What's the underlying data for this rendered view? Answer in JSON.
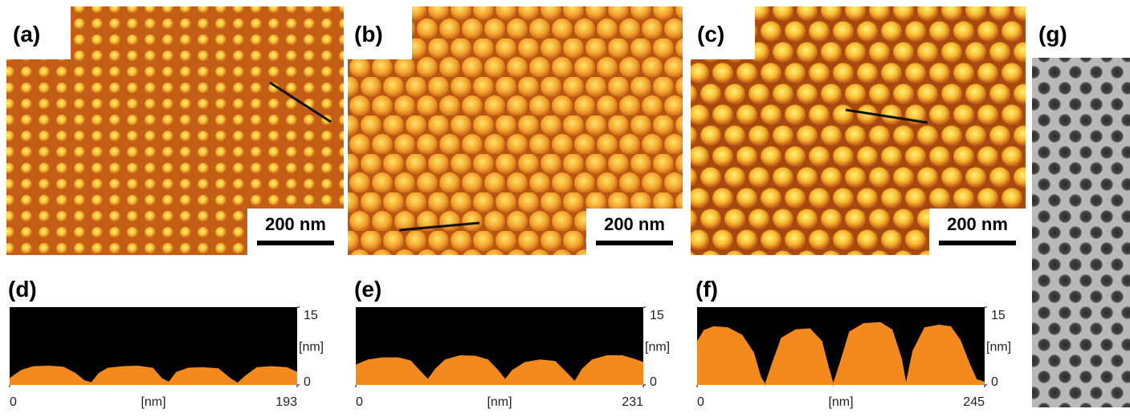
{
  "panels": [
    {
      "label": "(a)",
      "scale_bar": "200 nm"
    },
    {
      "label": "(b)",
      "scale_bar": "200 nm"
    },
    {
      "label": "(c)",
      "scale_bar": "200 nm"
    }
  ],
  "profiles": [
    {
      "label": "(d)",
      "xlim": [
        0,
        193
      ],
      "xticks": [
        0,
        193
      ],
      "ylim": [
        0,
        15
      ],
      "yticks": [
        0,
        15
      ],
      "x_label": "[nm]",
      "y_label": "[nm]",
      "x": [
        0,
        8,
        16,
        26,
        36,
        44,
        50,
        55,
        60,
        66,
        76,
        86,
        96,
        102,
        107,
        112,
        120,
        130,
        140,
        148,
        153,
        158,
        166,
        176,
        186,
        193
      ],
      "values": [
        1.2,
        2.8,
        3.5,
        3.6,
        3.4,
        2.2,
        0.8,
        0.4,
        2.2,
        3.2,
        3.5,
        3.6,
        3.2,
        1.2,
        0.5,
        2.4,
        3.2,
        3.3,
        3.1,
        1.2,
        0.3,
        1.6,
        3.3,
        3.5,
        3.3,
        2.4
      ]
    },
    {
      "label": "(e)",
      "xlim": [
        0,
        231
      ],
      "xticks": [
        0,
        231
      ],
      "ylim": [
        0,
        15
      ],
      "yticks": [
        0,
        15
      ],
      "x_label": "[nm]",
      "y_label": "[nm]",
      "x": [
        0,
        10,
        22,
        34,
        44,
        52,
        58,
        64,
        72,
        84,
        96,
        106,
        114,
        120,
        126,
        136,
        148,
        160,
        168,
        176,
        182,
        190,
        202,
        214,
        224,
        231
      ],
      "values": [
        3.8,
        4.8,
        5.2,
        5.2,
        4.6,
        2.5,
        1.0,
        3.0,
        4.8,
        5.6,
        5.5,
        4.8,
        2.8,
        1.0,
        2.8,
        4.3,
        4.8,
        4.5,
        2.6,
        0.6,
        3.0,
        4.8,
        5.6,
        5.6,
        4.9,
        4.3
      ]
    },
    {
      "label": "(f)",
      "xlim": [
        0,
        245
      ],
      "xticks": [
        0,
        245
      ],
      "ylim": [
        0,
        15
      ],
      "yticks": [
        0,
        15
      ],
      "x_label": "[nm]",
      "y_label": "[nm]",
      "x": [
        0,
        6,
        14,
        26,
        38,
        48,
        54,
        58,
        64,
        72,
        84,
        96,
        106,
        112,
        116,
        122,
        130,
        142,
        156,
        166,
        174,
        178,
        184,
        194,
        206,
        216,
        224,
        232,
        238,
        245
      ],
      "values": [
        8.2,
        10.5,
        11.2,
        11.0,
        9.6,
        6.2,
        1.5,
        0.0,
        4.0,
        9.0,
        10.6,
        10.8,
        8.4,
        3.2,
        0.0,
        4.2,
        10.2,
        11.8,
        12.0,
        10.6,
        5.0,
        0.0,
        6.5,
        11.0,
        11.5,
        11.2,
        8.6,
        4.0,
        1.0,
        0.5
      ]
    }
  ],
  "tem": {
    "label": "(g)"
  }
}
